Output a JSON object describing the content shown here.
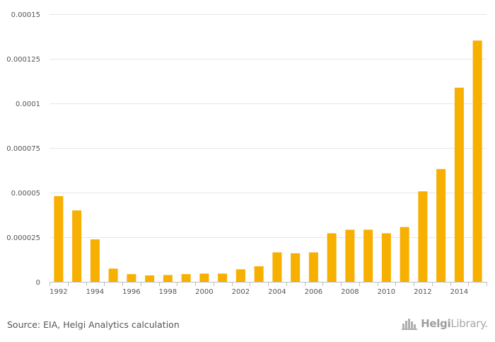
{
  "chart_data": {
    "type": "bar",
    "title": "",
    "xlabel": "",
    "ylabel": "",
    "categories": [
      "1992",
      "1993",
      "1994",
      "1995",
      "1996",
      "1997",
      "1998",
      "1999",
      "2000",
      "2001",
      "2002",
      "2003",
      "2004",
      "2005",
      "2006",
      "2007",
      "2008",
      "2009",
      "2010",
      "2011",
      "2012",
      "2013",
      "2014",
      "2015"
    ],
    "values": [
      4.8e-05,
      4e-05,
      2.38e-05,
      7.4e-06,
      4.3e-06,
      3.6e-06,
      3.8e-06,
      4.3e-06,
      4.6e-06,
      4.6e-06,
      7e-06,
      8.7e-06,
      1.65e-05,
      1.6e-05,
      1.65e-05,
      2.72e-05,
      2.92e-05,
      2.92e-05,
      2.72e-05,
      3.07e-05,
      5.07e-05,
      6.32e-05,
      0.0001088,
      0.0001352
    ],
    "xtick_labels": [
      "1992",
      "",
      "1994",
      "",
      "1996",
      "",
      "1998",
      "",
      "2000",
      "",
      "2002",
      "",
      "2004",
      "",
      "2006",
      "",
      "2008",
      "",
      "2010",
      "",
      "2012",
      "",
      "2014",
      ""
    ],
    "yticks": [
      0,
      2.5e-05,
      5e-05,
      7.5e-05,
      0.0001,
      0.000125,
      0.00015
    ],
    "ytick_labels": [
      "0",
      "0.000025",
      "0.00005",
      "0.000075",
      "0.0001",
      "0.000125",
      "0.00015"
    ],
    "ylim": [
      0,
      0.00015
    ],
    "grid": true,
    "bar_color": "#F7AF00",
    "grid_color": "#e6e6e6"
  },
  "footer": {
    "source": "Source: EIA, Helgi Analytics calculation",
    "brand_bold": "Helgi",
    "brand_rest": "Library."
  },
  "icons": {
    "brand_icon": "helgi-skyline-icon"
  }
}
